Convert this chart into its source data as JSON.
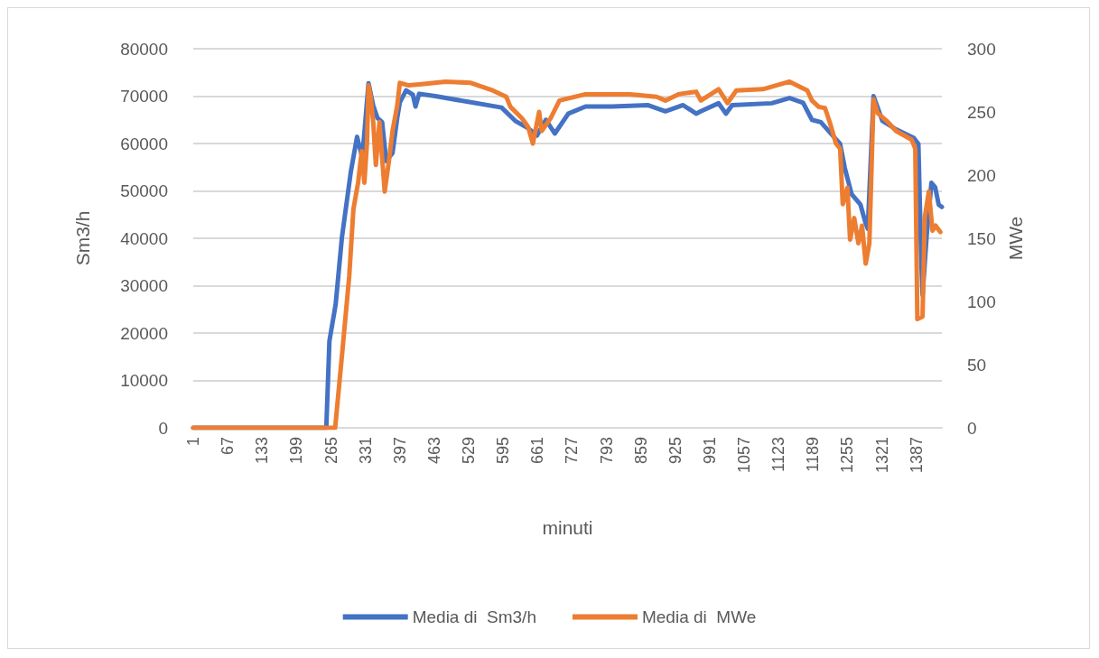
{
  "chart_data": {
    "type": "line",
    "xlabel": "minuti",
    "ylabel": "Sm3/h",
    "y2label": "MWe",
    "xlim": [
      1,
      1436
    ],
    "xticks": [
      1,
      67,
      133,
      199,
      265,
      331,
      397,
      463,
      529,
      595,
      661,
      727,
      793,
      859,
      925,
      991,
      1057,
      1123,
      1189,
      1255,
      1321,
      1387
    ],
    "ylim": [
      0,
      80000
    ],
    "yticks": [
      0,
      10000,
      20000,
      30000,
      40000,
      50000,
      60000,
      70000,
      80000
    ],
    "y2lim": [
      0,
      300
    ],
    "y2ticks": [
      0,
      50,
      100,
      150,
      200,
      250,
      300
    ],
    "grid": "y",
    "legend": "bottom",
    "line_style": "solid",
    "series": [
      {
        "name": "Media di  Sm3/h",
        "color": "#4472c4",
        "x": [
          1,
          256,
          262,
          274,
          286,
          303,
          315,
          325,
          337,
          346,
          354,
          363,
          371,
          383,
          392,
          397,
          409,
          422,
          427,
          434,
          465,
          533,
          592,
          618,
          643,
          660,
          677,
          694,
          720,
          753,
          804,
          872,
          906,
          940,
          965,
          974,
          1008,
          1022,
          1034,
          1110,
          1144,
          1170,
          1187,
          1204,
          1229,
          1241,
          1250,
          1263,
          1280,
          1289,
          1294,
          1305,
          1322,
          1348,
          1382,
          1391,
          1396,
          1399,
          1407,
          1416,
          1423,
          1430,
          1436
        ],
        "values": [
          0,
          0,
          18300,
          26100,
          40200,
          54000,
          61400,
          57000,
          72700,
          68000,
          65400,
          64500,
          56300,
          58000,
          65400,
          68700,
          71200,
          70300,
          67800,
          70500,
          70000,
          68700,
          67600,
          64800,
          63200,
          61700,
          65000,
          62100,
          66300,
          67800,
          67800,
          68100,
          66800,
          68100,
          66300,
          66800,
          68500,
          66300,
          68100,
          68500,
          69600,
          68600,
          65000,
          64500,
          61400,
          59900,
          54800,
          49300,
          47100,
          43500,
          42000,
          70000,
          64800,
          63000,
          61200,
          59900,
          37100,
          28000,
          40700,
          51700,
          50800,
          47100,
          46600
        ]
      },
      {
        "name": "Media di  MWe",
        "color": "#ed7d31",
        "axis": "y2",
        "x": [
          1,
          273,
          286,
          300,
          308,
          317,
          324,
          329,
          334,
          337,
          341,
          346,
          351,
          358,
          363,
          368,
          376,
          383,
          392,
          397,
          414,
          439,
          485,
          533,
          575,
          601,
          609,
          631,
          643,
          652,
          664,
          669,
          686,
          703,
          753,
          838,
          889,
          906,
          931,
          965,
          974,
          1008,
          1025,
          1042,
          1093,
          1144,
          1178,
          1187,
          1200,
          1212,
          1221,
          1233,
          1241,
          1246,
          1255,
          1260,
          1268,
          1276,
          1283,
          1290,
          1297,
          1305,
          1313,
          1330,
          1348,
          1378,
          1385,
          1389,
          1399,
          1403,
          1411,
          1418,
          1424,
          1433
        ],
        "values": [
          0,
          0,
          57,
          120,
          173,
          194,
          219,
          194,
          225,
          271,
          262,
          242,
          208,
          242,
          214,
          187,
          211,
          235,
          255,
          273,
          271,
          272,
          274,
          273,
          267,
          262,
          254,
          245,
          238,
          225,
          250,
          235,
          245,
          259,
          264,
          264,
          262,
          259,
          264,
          266,
          259,
          268,
          257,
          267,
          268,
          274,
          267,
          259,
          254,
          253,
          242,
          225,
          221,
          177,
          190,
          149,
          166,
          146,
          160,
          130,
          146,
          260,
          249,
          243,
          235,
          228,
          221,
          86,
          88,
          166,
          187,
          156,
          160,
          155
        ]
      }
    ]
  }
}
